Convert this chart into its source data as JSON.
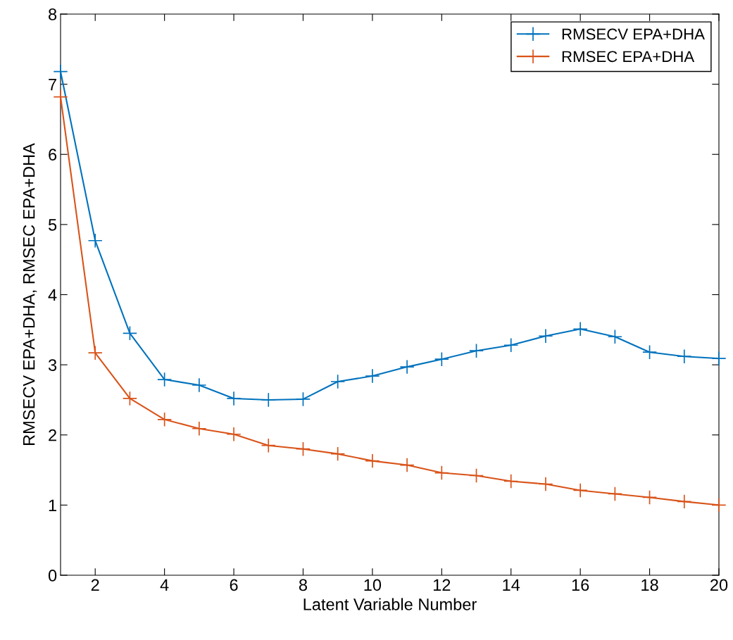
{
  "chart_data": {
    "type": "line",
    "xlabel": "Latent Variable Number",
    "ylabel": "RMSECV EPA+DHA, RMSEC EPA+DHA",
    "x": [
      1,
      2,
      3,
      4,
      5,
      6,
      7,
      8,
      9,
      10,
      11,
      12,
      13,
      14,
      15,
      16,
      17,
      18,
      19,
      20
    ],
    "series": [
      {
        "name": "RMSECV EPA+DHA",
        "color": "#0072bd",
        "values": [
          7.18,
          4.77,
          3.45,
          2.79,
          2.71,
          2.52,
          2.5,
          2.51,
          2.76,
          2.84,
          2.97,
          3.08,
          3.2,
          3.28,
          3.41,
          3.51,
          3.4,
          3.18,
          3.12,
          3.09
        ]
      },
      {
        "name": "RMSEC EPA+DHA",
        "color": "#d95319",
        "values": [
          6.82,
          3.17,
          2.52,
          2.22,
          2.09,
          2.01,
          1.85,
          1.8,
          1.73,
          1.63,
          1.57,
          1.46,
          1.42,
          1.34,
          1.3,
          1.21,
          1.16,
          1.11,
          1.05,
          1.0
        ]
      }
    ],
    "xlim": [
      1,
      20
    ],
    "xticks": [
      2,
      4,
      6,
      8,
      10,
      12,
      14,
      16,
      18,
      20
    ],
    "ylim": [
      0,
      8
    ],
    "yticks": [
      0,
      1,
      2,
      3,
      4,
      5,
      6,
      7,
      8
    ],
    "grid": false,
    "legend": "top right",
    "marker": "cross",
    "line_style": "solid"
  }
}
